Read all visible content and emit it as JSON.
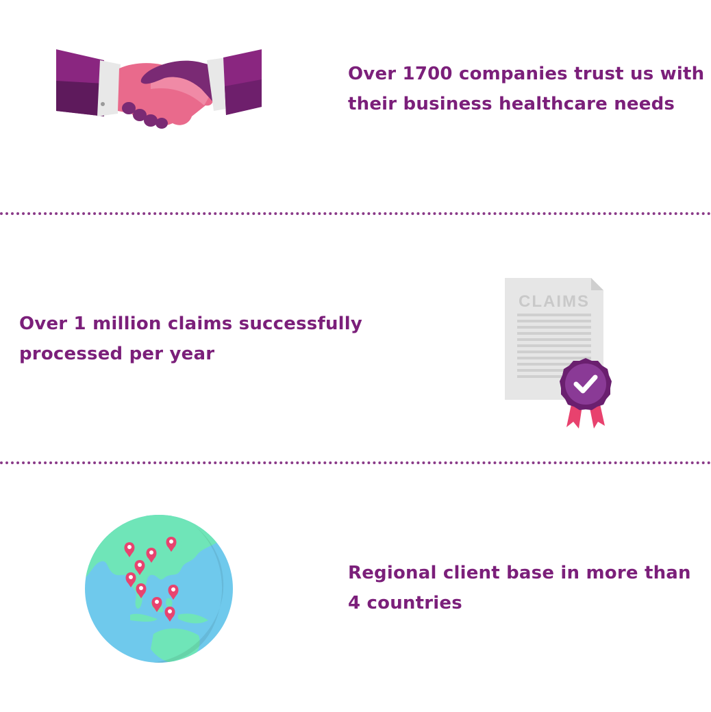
{
  "stats": [
    {
      "icon": "handshake-icon",
      "lines": [
        "Over 1700 companies trust us with",
        "their business healthcare needs"
      ]
    },
    {
      "icon": "claims-certificate-icon",
      "document_label": "CLAIMS",
      "lines": [
        "Over 1 million claims successfully",
        "processed per year"
      ]
    },
    {
      "icon": "globe-icon",
      "lines": [
        "Regional client base in more than",
        "4 countries"
      ]
    }
  ],
  "colors": {
    "text": "#7b1f7a",
    "divider": "#8a3a88",
    "sleeve_purple": "#6e1f6c",
    "hand_pink": "#e96a8c",
    "badge_purple": "#7b2a86",
    "ribbon_pink": "#e8426e",
    "ocean": "#6fc9ec",
    "land": "#6fe5b8",
    "pin": "#e8436f"
  }
}
